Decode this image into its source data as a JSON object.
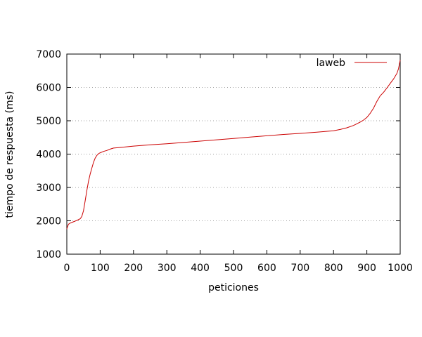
{
  "chart_data": {
    "type": "line",
    "title": "",
    "xlabel": "peticiones",
    "ylabel": "tiempo de respuesta (ms)",
    "xlim": [
      0,
      1000
    ],
    "ylim": [
      1000,
      7000
    ],
    "xticks": [
      0,
      100,
      200,
      300,
      400,
      500,
      600,
      700,
      800,
      900,
      1000
    ],
    "yticks": [
      1000,
      2000,
      3000,
      4000,
      5000,
      6000,
      7000
    ],
    "grid": "horizontal dotted",
    "legend_position": "top-right",
    "series": [
      {
        "name": "laweb",
        "color": "#cc0000",
        "x": [
          0,
          2,
          5,
          10,
          20,
          30,
          40,
          45,
          50,
          55,
          60,
          65,
          70,
          75,
          80,
          85,
          90,
          95,
          100,
          110,
          120,
          130,
          140,
          150,
          200,
          250,
          300,
          350,
          400,
          450,
          500,
          550,
          600,
          650,
          700,
          750,
          800,
          820,
          840,
          860,
          870,
          880,
          890,
          900,
          910,
          920,
          930,
          940,
          950,
          960,
          970,
          980,
          990,
          995,
          1000
        ],
        "y": [
          1750,
          1820,
          1900,
          1930,
          1970,
          2010,
          2060,
          2130,
          2300,
          2600,
          2900,
          3180,
          3400,
          3580,
          3750,
          3880,
          3960,
          4010,
          4040,
          4080,
          4110,
          4150,
          4180,
          4190,
          4240,
          4280,
          4310,
          4350,
          4390,
          4430,
          4470,
          4510,
          4550,
          4590,
          4620,
          4660,
          4700,
          4740,
          4790,
          4860,
          4910,
          4960,
          5020,
          5100,
          5220,
          5380,
          5580,
          5750,
          5850,
          5980,
          6120,
          6250,
          6420,
          6560,
          6820
        ]
      }
    ]
  }
}
